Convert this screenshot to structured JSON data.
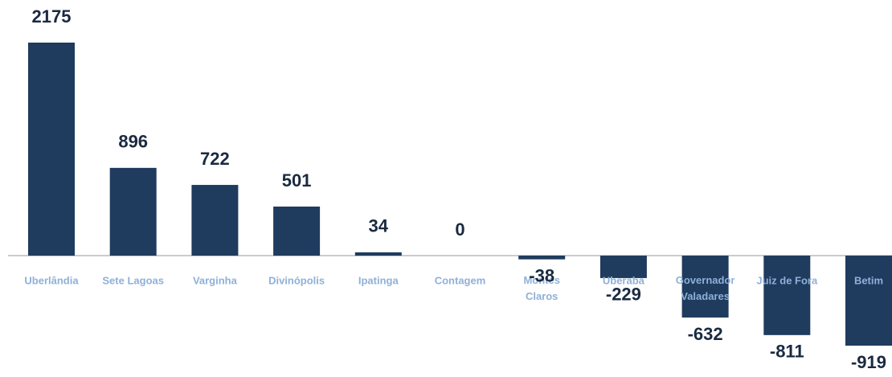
{
  "chart_data": {
    "type": "bar",
    "categories": [
      "Uberlândia",
      "Sete Lagoas",
      "Varginha",
      "Divinópolis",
      "Ipatinga",
      "Contagem",
      "Montes Claros",
      "Uberaba",
      "Governador Valadares",
      "Juiz de Fora",
      "Betim"
    ],
    "values": [
      2175,
      896,
      722,
      501,
      34,
      0,
      -38,
      -229,
      -632,
      -811,
      -919
    ],
    "color": "#1f3b5e"
  }
}
